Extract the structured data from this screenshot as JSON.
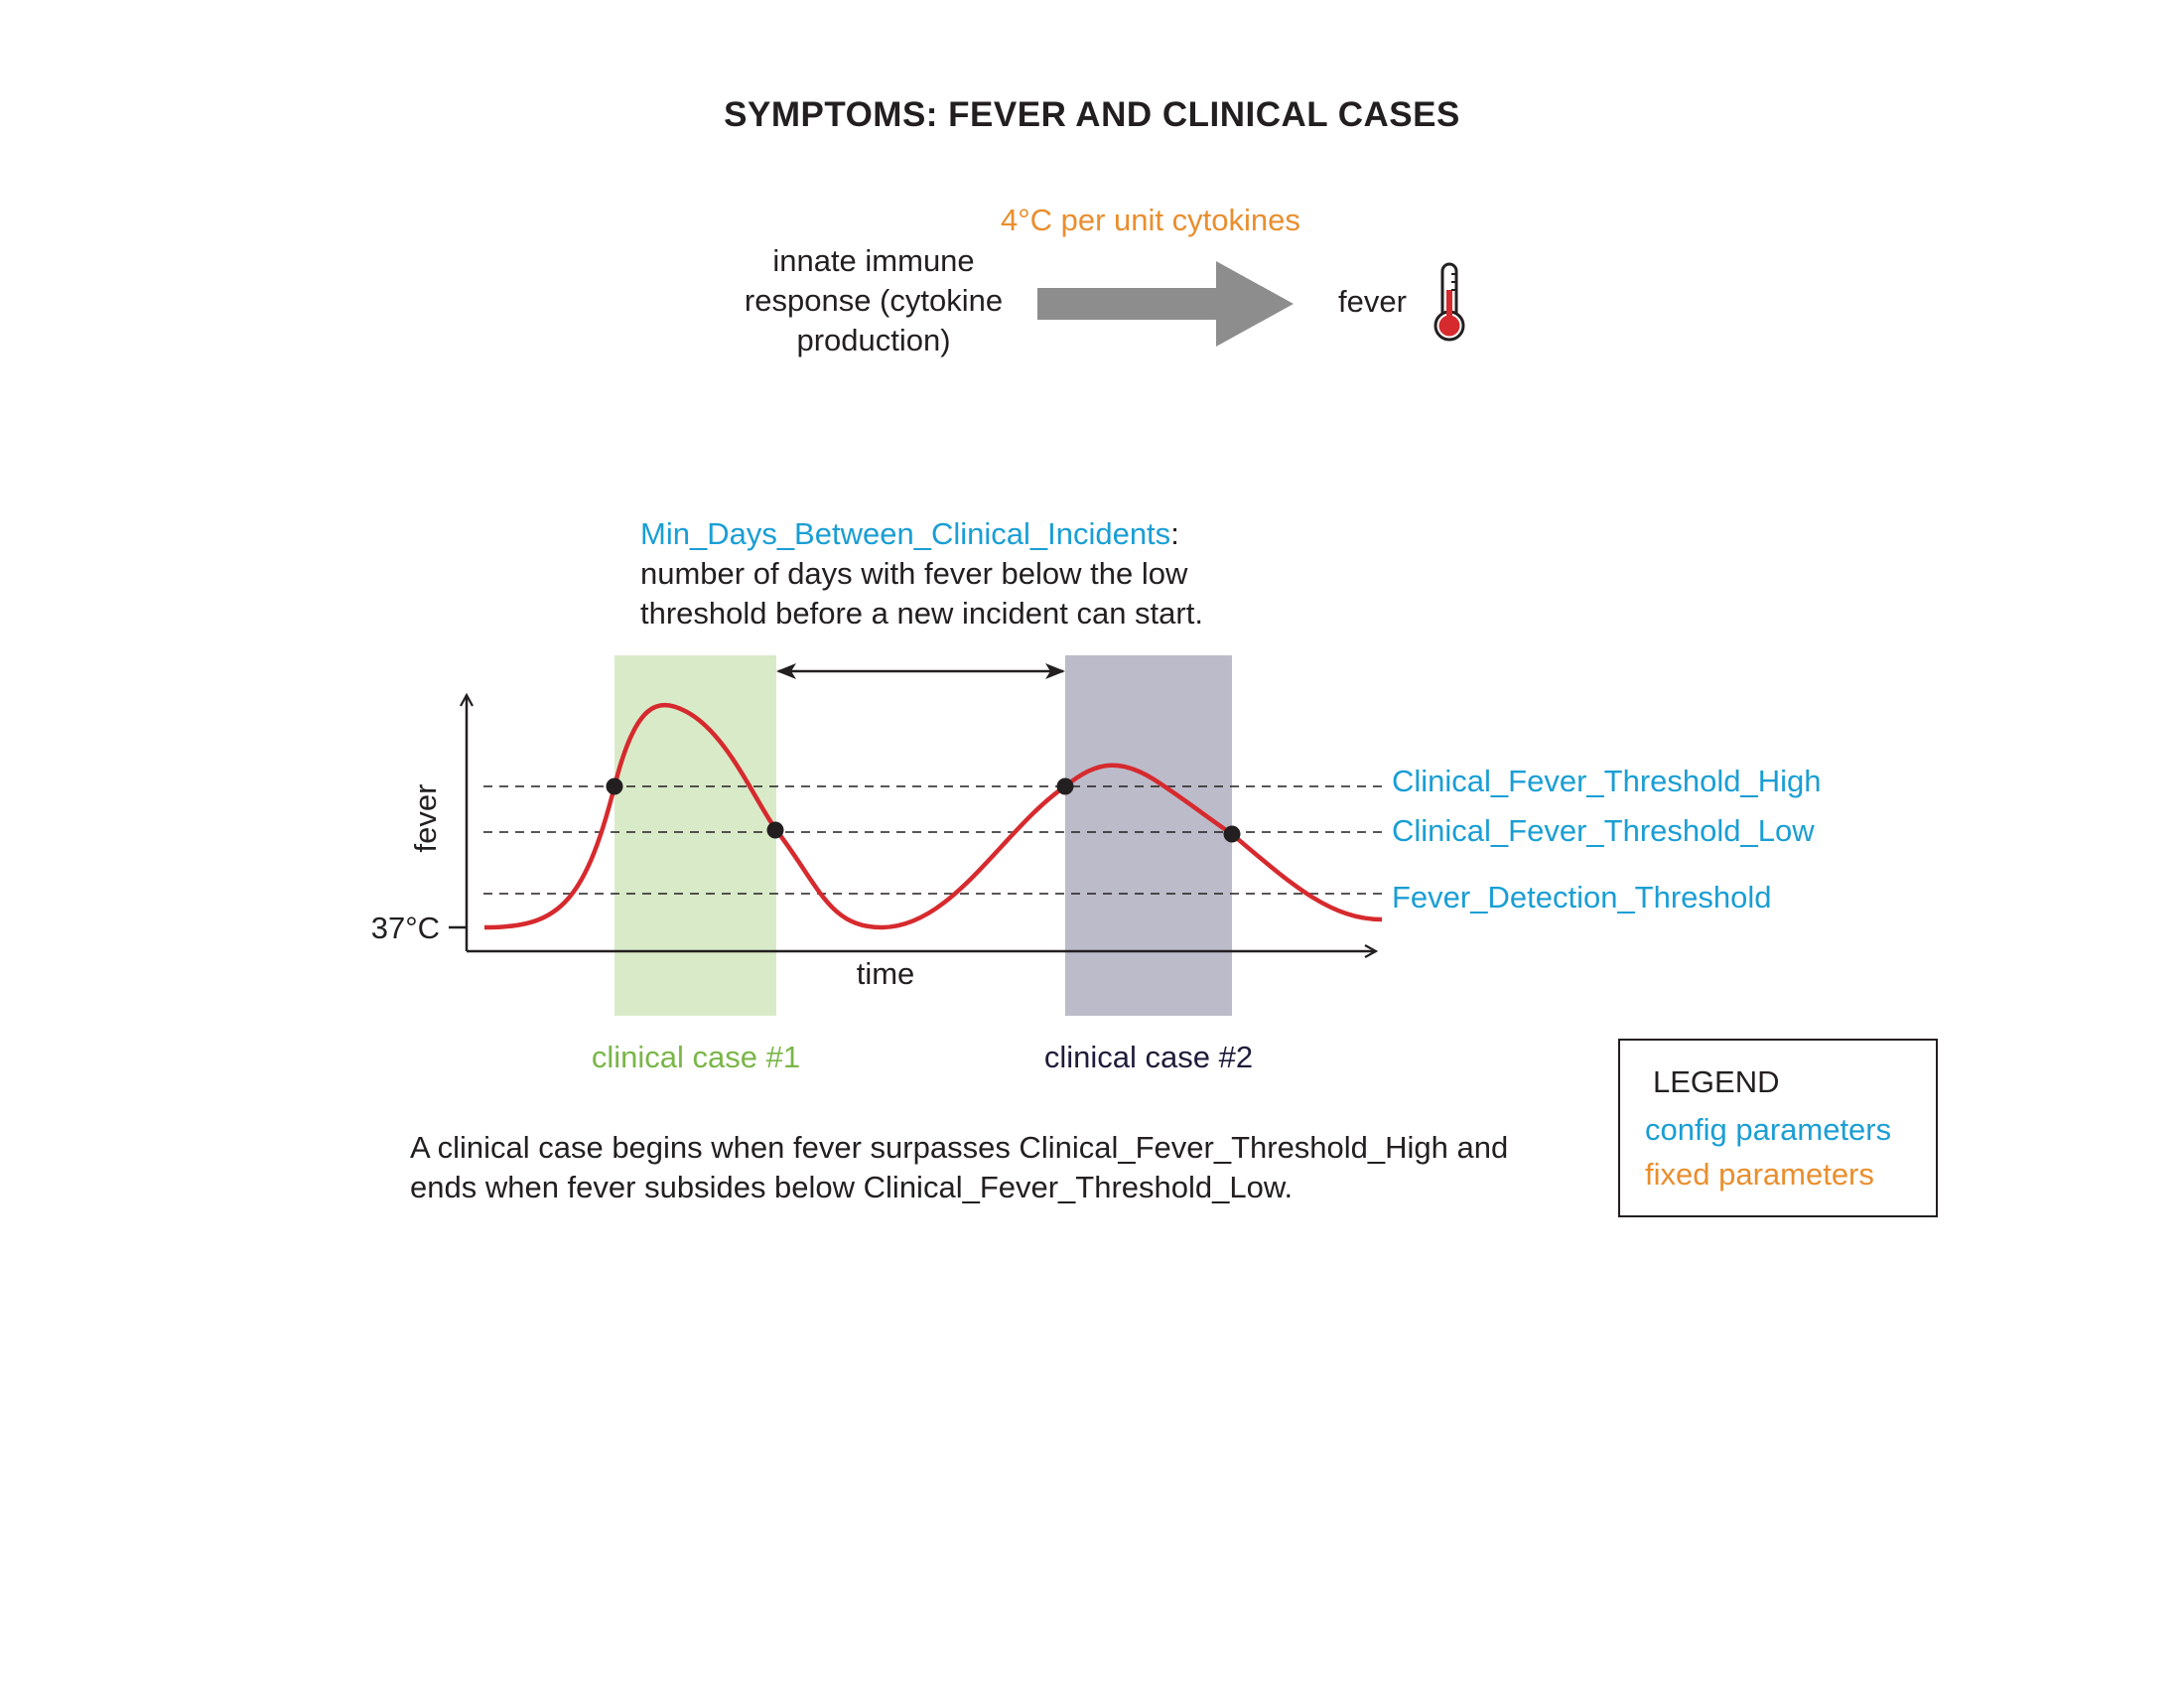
{
  "title": "SYMPTOMS: FEVER AND CLINICAL CASES",
  "colors": {
    "config": "#1a9ed4",
    "fixed": "#e98e2e",
    "curve": "#d62a2e",
    "case1_band": "#d9eac8",
    "case1_label": "#7ab648",
    "case2_band": "#bcbbc9",
    "case2_label": "#1f1d3b",
    "arrow_gray": "#8c8d8c"
  },
  "flow": {
    "source_label": [
      "innate immune",
      "response (cytokine",
      "production)"
    ],
    "rate_label": "4°C per unit cytokines",
    "target_label": "fever",
    "target_icon": "thermometer-icon"
  },
  "annotation": {
    "param_name": "Min_Days_Between_Clinical_Incidents",
    "param_suffix": ":",
    "description_lines": [
      "number of days with fever below the low",
      "threshold before a new incident can start."
    ]
  },
  "chart": {
    "y_axis_label": "fever",
    "x_axis_label": "time",
    "baseline_tick_label": "37°C",
    "thresholds": [
      {
        "name": "Clinical_Fever_Threshold_High"
      },
      {
        "name": "Clinical_Fever_Threshold_Low"
      },
      {
        "name": "Fever_Detection_Threshold"
      }
    ],
    "cases": [
      {
        "label": "clinical case #1"
      },
      {
        "label": "clinical case #2"
      }
    ]
  },
  "caption_lines": [
    "A clinical case begins when fever surpasses Clinical_Fever_Threshold_High and",
    "ends when fever subsides below Clinical_Fever_Threshold_Low."
  ],
  "legend": {
    "title": "LEGEND",
    "items": [
      {
        "label": "config parameters",
        "kind": "config"
      },
      {
        "label": "fixed parameters",
        "kind": "fixed"
      }
    ]
  }
}
